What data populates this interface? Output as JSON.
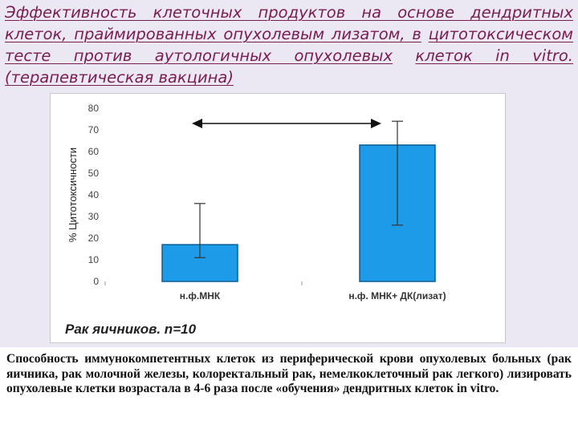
{
  "slide": {
    "title": [
      "Эффективность клеточных продуктов на основе дендритных",
      "клеток, праймированных опухолевым лизатом, в",
      "цитотоксическом тесте против аутологичных опухолевых",
      "клеток in vitro. (терапевтическая вакцина)"
    ],
    "footer_text": "Способность иммунокомпетентных клеток из периферической крови опухолевых больных (рак яичника, рак молочной железы, колоректальный рак, немелкоклеточный рак легкого) лизировать опухолевые клетки возрастала в 4-6 раза после «обучения» дендритных клеток in vitro."
  },
  "colors": {
    "title": "#7a1d52",
    "bar_fill": "#1e9be8",
    "bar_stroke": "#0b5e96",
    "background": "#ece8f3"
  },
  "chart_data": {
    "type": "bar",
    "categories": [
      "н.ф.МНК",
      "н.ф. МНК+ ДК(лизат)"
    ],
    "values": [
      17,
      63
    ],
    "error_high": [
      36,
      74
    ],
    "error_low": [
      11,
      26
    ],
    "ylabel": "% Цитотоксичности",
    "ylim": [
      0,
      80
    ],
    "yticks": [
      "0",
      "10",
      "20",
      "30",
      "40",
      "50",
      "60",
      "70",
      "80"
    ],
    "annotation": "Рак яичников. n=10",
    "comparison_arrow": "double-headed",
    "grid": false
  }
}
